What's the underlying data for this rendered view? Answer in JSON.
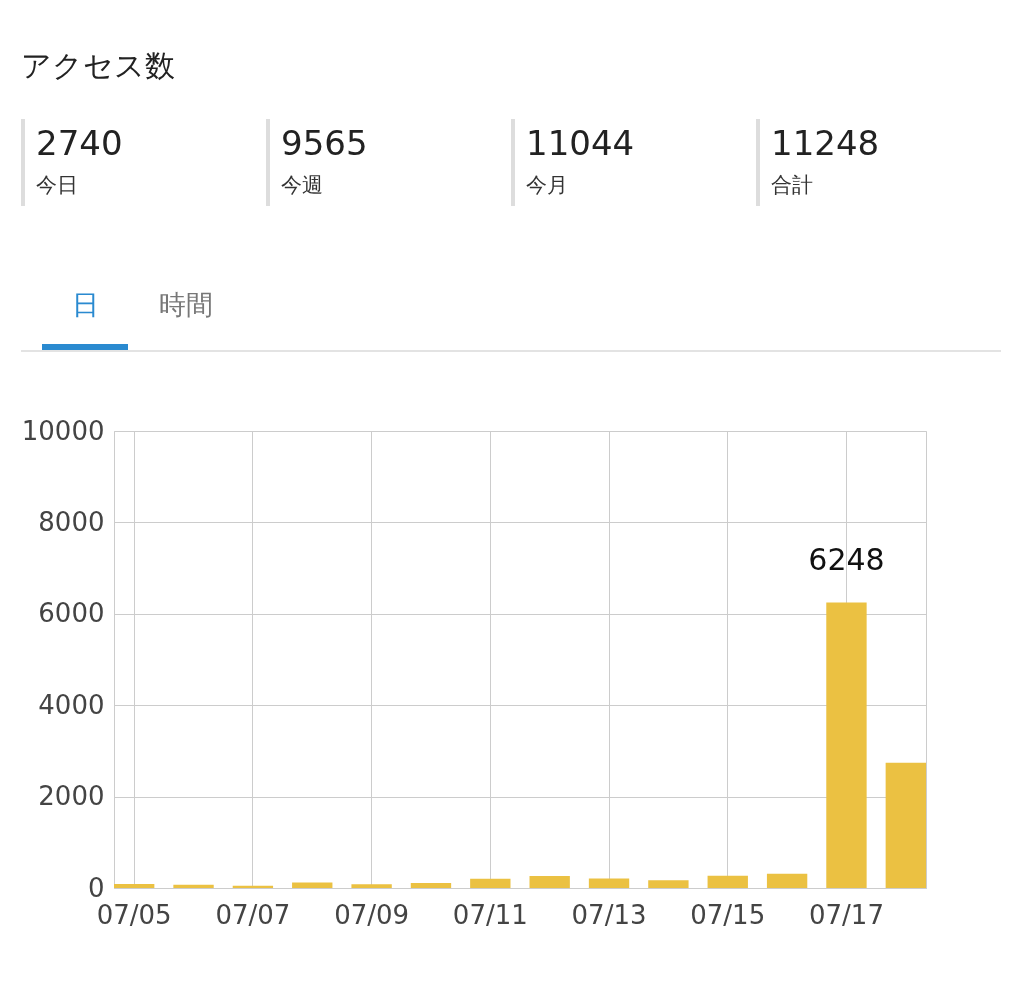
{
  "chart_data": [
    {
      "type": "other",
      "title": "アクセス数",
      "categories": [
        "今日",
        "今週",
        "今月",
        "合計"
      ],
      "values": [
        2740,
        9565,
        11044,
        11248
      ],
      "data_labels": true
    },
    {
      "type": "bar",
      "annotations": [
        "日",
        "時間"
      ],
      "categories": [
        "07/05",
        null,
        "07/07",
        null,
        "07/09",
        null,
        "07/11",
        null,
        "07/13",
        null,
        "07/15",
        null,
        "07/17",
        null
      ],
      "values": [
        90,
        70,
        50,
        120,
        80,
        110,
        200,
        260,
        210,
        170,
        270,
        310,
        6248,
        2740
      ],
      "value_labels": [
        null,
        null,
        null,
        null,
        null,
        null,
        null,
        null,
        null,
        null,
        null,
        null,
        "6248",
        null
      ],
      "color": "#ebc142",
      "ylim": [
        0,
        10000
      ],
      "yticks": [
        0,
        2000,
        4000,
        6000,
        8000,
        10000
      ],
      "grid": true
    }
  ]
}
